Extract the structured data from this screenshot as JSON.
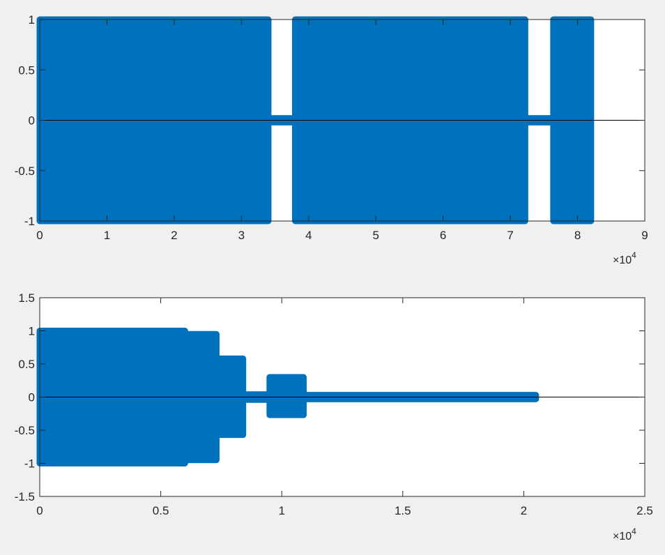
{
  "figure": {
    "background": "#f0f0f0"
  },
  "chart_data": [
    {
      "type": "scatter",
      "marker": "open-circle",
      "color": "#0072bd",
      "grid": false,
      "xlim": [
        0,
        90000
      ],
      "ylim": [
        -1,
        1
      ],
      "x_exponent_label": "×10",
      "x_exponent_power": "4",
      "xticks": [
        0,
        10000,
        20000,
        30000,
        40000,
        50000,
        60000,
        70000,
        80000,
        90000
      ],
      "xtick_labels": [
        "0",
        "1",
        "2",
        "3",
        "4",
        "5",
        "6",
        "7",
        "8",
        "9"
      ],
      "yticks": [
        -1,
        -0.5,
        0,
        0.5,
        1
      ],
      "ytick_labels": [
        "-1",
        "-0.5",
        "0",
        "0.5",
        "1"
      ],
      "zero_line": {
        "x": [
          0,
          90000
        ],
        "y": 0
      },
      "envelope": [
        {
          "x_start": 0,
          "x_end": 34000,
          "y_min": -1,
          "y_max": 1
        },
        {
          "x_start": 34000,
          "x_end": 38000,
          "y_min": -0.02,
          "y_max": 0.02
        },
        {
          "x_start": 38000,
          "x_end": 72200,
          "y_min": -1,
          "y_max": 1
        },
        {
          "x_start": 72200,
          "x_end": 76400,
          "y_min": -0.02,
          "y_max": 0.02
        },
        {
          "x_start": 76400,
          "x_end": 82000,
          "y_min": -1,
          "y_max": 1
        }
      ]
    },
    {
      "type": "scatter",
      "marker": "open-circle",
      "color": "#0072bd",
      "grid": false,
      "xlim": [
        0,
        25000
      ],
      "ylim": [
        -1.5,
        1.5
      ],
      "x_exponent_label": "×10",
      "x_exponent_power": "4",
      "xticks": [
        0,
        5000,
        10000,
        15000,
        20000,
        25000
      ],
      "xtick_labels": [
        "0",
        "0.5",
        "1",
        "1.5",
        "2",
        "2.5"
      ],
      "yticks": [
        -1.5,
        -1,
        -0.5,
        0,
        0.5,
        1,
        1.5
      ],
      "ytick_labels": [
        "-1.5",
        "-1",
        "-0.5",
        "0",
        "0.5",
        "1",
        "1.5"
      ],
      "zero_line": {
        "x": [
          0,
          25000
        ],
        "y": 0
      },
      "envelope": [
        {
          "x_start": 0,
          "x_end": 6000,
          "y_min": -1,
          "y_max": 1
        },
        {
          "x_start": 6000,
          "x_end": 7300,
          "y_min": -0.95,
          "y_max": 0.95
        },
        {
          "x_start": 7300,
          "x_end": 8400,
          "y_min": -0.57,
          "y_max": 0.58
        },
        {
          "x_start": 8400,
          "x_end": 9500,
          "y_min": -0.04,
          "y_max": 0.04
        },
        {
          "x_start": 9500,
          "x_end": 10900,
          "y_min": -0.27,
          "y_max": 0.3
        },
        {
          "x_start": 10900,
          "x_end": 20500,
          "y_min": -0.03,
          "y_max": 0.03
        }
      ]
    }
  ]
}
